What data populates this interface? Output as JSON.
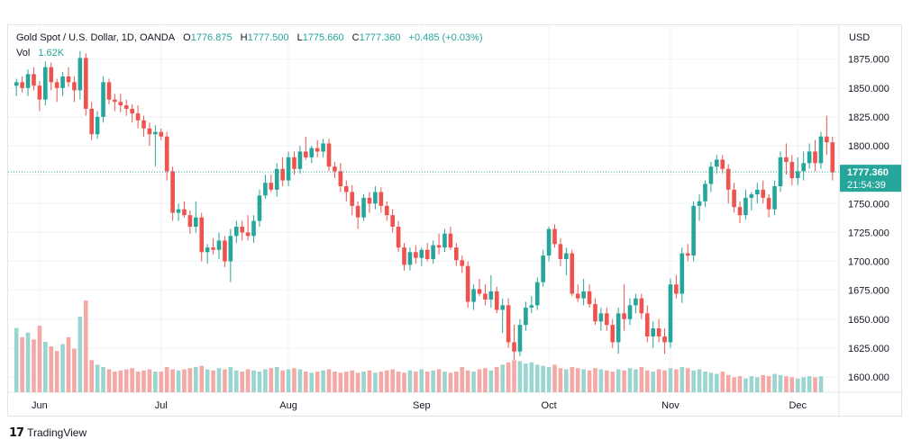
{
  "chart_data": {
    "type": "candlestick",
    "legend": {
      "symbol": "Gold Spot / U.S. Dollar, 1D, OANDA",
      "open_label": "O",
      "open": "1776.875",
      "high_label": "H",
      "high": "1777.500",
      "low_label": "L",
      "low": "1775.660",
      "close_label": "C",
      "close": "1777.360",
      "change": "+0.485 (+0.03%)",
      "vol_label": "Vol",
      "vol": "1.62K"
    },
    "currency_label": "USD",
    "y_ticks": [
      "1875.000",
      "1850.000",
      "1825.000",
      "1800.000",
      "1775.000",
      "1750.000",
      "1725.000",
      "1700.000",
      "1675.000",
      "1650.000",
      "1625.000",
      "1600.000"
    ],
    "y_range": [
      1593,
      1895
    ],
    "x_ticks": [
      {
        "label": "Jun",
        "index": 4
      },
      {
        "label": "Jul",
        "index": 25
      },
      {
        "label": "Aug",
        "index": 47
      },
      {
        "label": "Sep",
        "index": 70
      },
      {
        "label": "Oct",
        "index": 92
      },
      {
        "label": "Nov",
        "index": 113
      },
      {
        "label": "Dec",
        "index": 135
      }
    ],
    "last_price": "1777.360",
    "last_price_value": 1777.36,
    "countdown": "21:54:39",
    "candles": [
      [
        1852,
        1858,
        1843,
        1855
      ],
      [
        1855,
        1860,
        1846,
        1850
      ],
      [
        1850,
        1866,
        1843,
        1862
      ],
      [
        1862,
        1868,
        1848,
        1852
      ],
      [
        1852,
        1856,
        1830,
        1840
      ],
      [
        1840,
        1873,
        1835,
        1868
      ],
      [
        1868,
        1872,
        1848,
        1855
      ],
      [
        1855,
        1858,
        1838,
        1850
      ],
      [
        1850,
        1864,
        1843,
        1860
      ],
      [
        1860,
        1868,
        1851,
        1855
      ],
      [
        1855,
        1860,
        1838,
        1848
      ],
      [
        1848,
        1882,
        1840,
        1876
      ],
      [
        1876,
        1880,
        1826,
        1832
      ],
      [
        1832,
        1838,
        1805,
        1810
      ],
      [
        1810,
        1830,
        1806,
        1825
      ],
      [
        1825,
        1860,
        1820,
        1855
      ],
      [
        1855,
        1858,
        1836,
        1840
      ],
      [
        1840,
        1845,
        1830,
        1838
      ],
      [
        1838,
        1845,
        1829,
        1835
      ],
      [
        1835,
        1840,
        1826,
        1832
      ],
      [
        1832,
        1836,
        1820,
        1828
      ],
      [
        1828,
        1835,
        1815,
        1822
      ],
      [
        1822,
        1826,
        1808,
        1815
      ],
      [
        1815,
        1820,
        1800,
        1810
      ],
      [
        1810,
        1818,
        1782,
        1812
      ],
      [
        1812,
        1815,
        1805,
        1808
      ],
      [
        1808,
        1812,
        1770,
        1778
      ],
      [
        1778,
        1782,
        1735,
        1742
      ],
      [
        1742,
        1750,
        1735,
        1745
      ],
      [
        1745,
        1752,
        1738,
        1740
      ],
      [
        1740,
        1744,
        1724,
        1730
      ],
      [
        1730,
        1752,
        1725,
        1738
      ],
      [
        1738,
        1742,
        1700,
        1708
      ],
      [
        1708,
        1715,
        1698,
        1712
      ],
      [
        1712,
        1720,
        1706,
        1710
      ],
      [
        1710,
        1725,
        1702,
        1718
      ],
      [
        1718,
        1722,
        1695,
        1700
      ],
      [
        1700,
        1728,
        1682,
        1722
      ],
      [
        1722,
        1735,
        1716,
        1730
      ],
      [
        1730,
        1735,
        1718,
        1725
      ],
      [
        1725,
        1740,
        1718,
        1722
      ],
      [
        1722,
        1740,
        1716,
        1735
      ],
      [
        1735,
        1762,
        1730,
        1757
      ],
      [
        1757,
        1775,
        1754,
        1768
      ],
      [
        1768,
        1775,
        1760,
        1762
      ],
      [
        1762,
        1785,
        1756,
        1780
      ],
      [
        1780,
        1790,
        1765,
        1770
      ],
      [
        1770,
        1795,
        1765,
        1790
      ],
      [
        1790,
        1795,
        1775,
        1780
      ],
      [
        1780,
        1800,
        1776,
        1795
      ],
      [
        1795,
        1808,
        1788,
        1790
      ],
      [
        1790,
        1800,
        1785,
        1798
      ],
      [
        1798,
        1805,
        1790,
        1795
      ],
      [
        1795,
        1806,
        1790,
        1802
      ],
      [
        1802,
        1806,
        1778,
        1782
      ],
      [
        1782,
        1786,
        1772,
        1778
      ],
      [
        1778,
        1785,
        1760,
        1765
      ],
      [
        1765,
        1770,
        1752,
        1760
      ],
      [
        1760,
        1766,
        1740,
        1748
      ],
      [
        1748,
        1752,
        1728,
        1738
      ],
      [
        1738,
        1758,
        1735,
        1755
      ],
      [
        1755,
        1760,
        1742,
        1750
      ],
      [
        1750,
        1765,
        1745,
        1760
      ],
      [
        1760,
        1764,
        1742,
        1748
      ],
      [
        1748,
        1752,
        1735,
        1740
      ],
      [
        1740,
        1745,
        1725,
        1730
      ],
      [
        1730,
        1735,
        1708,
        1712
      ],
      [
        1712,
        1716,
        1692,
        1697
      ],
      [
        1697,
        1712,
        1692,
        1708
      ],
      [
        1708,
        1714,
        1698,
        1703
      ],
      [
        1703,
        1712,
        1696,
        1710
      ],
      [
        1710,
        1716,
        1700,
        1702
      ],
      [
        1702,
        1718,
        1698,
        1714
      ],
      [
        1714,
        1724,
        1706,
        1712
      ],
      [
        1712,
        1728,
        1708,
        1724
      ],
      [
        1724,
        1730,
        1710,
        1712
      ],
      [
        1712,
        1716,
        1696,
        1701
      ],
      [
        1701,
        1705,
        1690,
        1696
      ],
      [
        1696,
        1700,
        1660,
        1665
      ],
      [
        1665,
        1680,
        1658,
        1676
      ],
      [
        1676,
        1685,
        1670,
        1672
      ],
      [
        1672,
        1680,
        1662,
        1667
      ],
      [
        1667,
        1688,
        1660,
        1674
      ],
      [
        1674,
        1678,
        1655,
        1658
      ],
      [
        1658,
        1668,
        1638,
        1662
      ],
      [
        1662,
        1668,
        1625,
        1630
      ],
      [
        1630,
        1645,
        1615,
        1622
      ],
      [
        1622,
        1650,
        1618,
        1645
      ],
      [
        1645,
        1665,
        1640,
        1660
      ],
      [
        1660,
        1670,
        1655,
        1662
      ],
      [
        1662,
        1686,
        1658,
        1682
      ],
      [
        1682,
        1710,
        1678,
        1705
      ],
      [
        1705,
        1730,
        1700,
        1728
      ],
      [
        1728,
        1732,
        1712,
        1715
      ],
      [
        1715,
        1720,
        1696,
        1702
      ],
      [
        1702,
        1712,
        1688,
        1707
      ],
      [
        1707,
        1710,
        1670,
        1672
      ],
      [
        1672,
        1680,
        1665,
        1668
      ],
      [
        1668,
        1685,
        1662,
        1674
      ],
      [
        1674,
        1680,
        1660,
        1663
      ],
      [
        1663,
        1668,
        1645,
        1648
      ],
      [
        1648,
        1660,
        1640,
        1655
      ],
      [
        1655,
        1660,
        1640,
        1645
      ],
      [
        1645,
        1650,
        1625,
        1630
      ],
      [
        1630,
        1660,
        1620,
        1655
      ],
      [
        1655,
        1680,
        1640,
        1650
      ],
      [
        1650,
        1668,
        1645,
        1662
      ],
      [
        1662,
        1672,
        1655,
        1668
      ],
      [
        1668,
        1672,
        1650,
        1655
      ],
      [
        1655,
        1662,
        1630,
        1635
      ],
      [
        1635,
        1648,
        1625,
        1642
      ],
      [
        1642,
        1650,
        1630,
        1635
      ],
      [
        1635,
        1642,
        1620,
        1630
      ],
      [
        1630,
        1685,
        1625,
        1680
      ],
      [
        1680,
        1688,
        1668,
        1672
      ],
      [
        1672,
        1712,
        1664,
        1707
      ],
      [
        1707,
        1715,
        1700,
        1705
      ],
      [
        1705,
        1752,
        1700,
        1748
      ],
      [
        1748,
        1758,
        1735,
        1752
      ],
      [
        1752,
        1770,
        1747,
        1767
      ],
      [
        1767,
        1786,
        1760,
        1782
      ],
      [
        1782,
        1792,
        1776,
        1788
      ],
      [
        1788,
        1792,
        1776,
        1780
      ],
      [
        1780,
        1784,
        1750,
        1762
      ],
      [
        1762,
        1768,
        1742,
        1747
      ],
      [
        1747,
        1752,
        1733,
        1740
      ],
      [
        1740,
        1762,
        1736,
        1755
      ],
      [
        1755,
        1760,
        1744,
        1758
      ],
      [
        1758,
        1768,
        1750,
        1762
      ],
      [
        1762,
        1770,
        1750,
        1755
      ],
      [
        1755,
        1758,
        1738,
        1745
      ],
      [
        1745,
        1770,
        1740,
        1765
      ],
      [
        1765,
        1795,
        1760,
        1790
      ],
      [
        1790,
        1802,
        1775,
        1786
      ],
      [
        1786,
        1792,
        1766,
        1772
      ],
      [
        1772,
        1790,
        1766,
        1778
      ],
      [
        1778,
        1795,
        1770,
        1785
      ],
      [
        1785,
        1802,
        1780,
        1795
      ],
      [
        1795,
        1805,
        1778,
        1785
      ],
      [
        1785,
        1812,
        1780,
        1808
      ],
      [
        1808,
        1826,
        1792,
        1803
      ],
      [
        1803,
        1808,
        1770,
        1777
      ]
    ],
    "volumes": [
      56,
      48,
      52,
      46,
      58,
      44,
      40,
      36,
      42,
      48,
      38,
      66,
      80,
      28,
      24,
      22,
      20,
      18,
      19,
      20,
      21,
      18,
      19,
      20,
      18,
      18,
      22,
      20,
      19,
      20,
      21,
      22,
      23,
      20,
      19,
      21,
      20,
      22,
      19,
      18,
      20,
      19,
      18,
      20,
      21,
      22,
      19,
      20,
      21,
      20,
      18,
      17,
      18,
      19,
      20,
      18,
      17,
      18,
      19,
      17,
      18,
      19,
      17,
      18,
      19,
      20,
      18,
      17,
      19,
      18,
      20,
      18,
      19,
      20,
      18,
      17,
      18,
      22,
      19,
      18,
      20,
      21,
      19,
      22,
      24,
      26,
      28,
      27,
      25,
      26,
      24,
      23,
      22,
      24,
      21,
      20,
      22,
      21,
      20,
      19,
      21,
      20,
      19,
      18,
      20,
      19,
      21,
      20,
      22,
      19,
      18,
      20,
      19,
      21,
      20,
      22,
      21,
      19,
      20,
      18,
      17,
      16,
      18,
      15,
      13,
      14,
      12,
      14,
      13,
      15,
      14,
      16,
      15,
      14,
      13,
      12,
      13,
      14,
      13,
      14
    ]
  }
}
